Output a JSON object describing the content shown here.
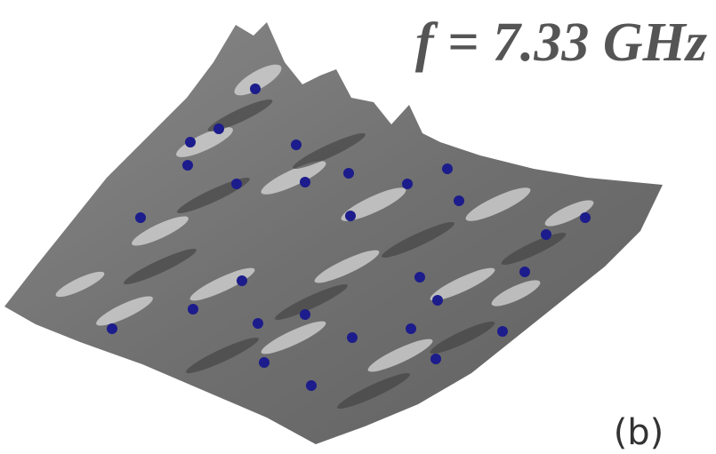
{
  "figure": {
    "title": "f = 7.33 GHz",
    "panel_label": "(b)"
  }
}
